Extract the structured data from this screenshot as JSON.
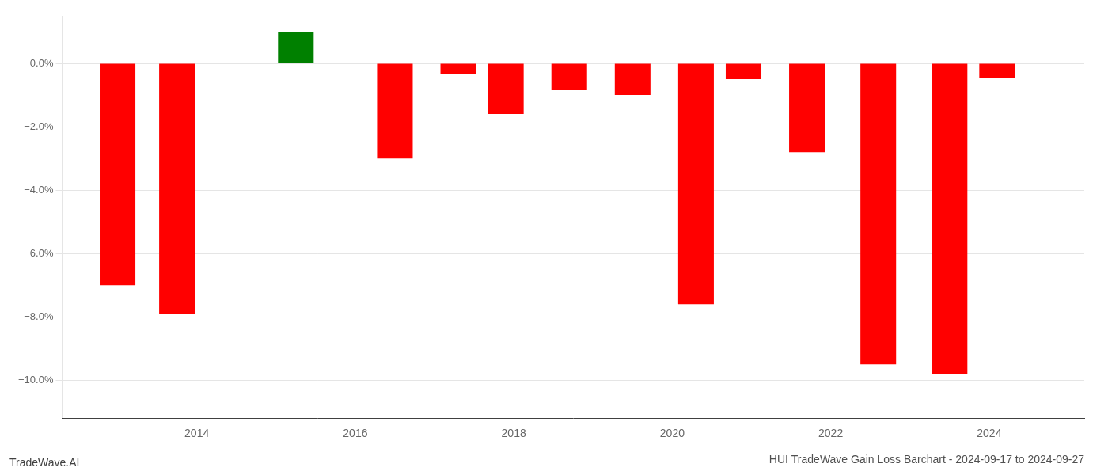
{
  "chart_data": {
    "type": "bar",
    "title": "HUI TradeWave Gain Loss Barchart - 2024-09-17 to 2024-09-27",
    "annotations": [
      "TradeWave.AI"
    ],
    "x": [
      2013,
      2013.75,
      2015.25,
      2016.5,
      2017.3,
      2017.9,
      2018.7,
      2019.5,
      2020.3,
      2020.9,
      2021.7,
      2022.6,
      2023.5,
      2024.1
    ],
    "values": [
      -7.0,
      -7.9,
      1.0,
      -3.0,
      -0.35,
      -1.6,
      -0.85,
      -1.0,
      -7.6,
      -0.5,
      -2.8,
      -9.5,
      -9.8,
      -0.45
    ],
    "colors": [
      "#ff0000",
      "#ff0000",
      "#008000",
      "#ff0000",
      "#ff0000",
      "#ff0000",
      "#ff0000",
      "#ff0000",
      "#ff0000",
      "#ff0000",
      "#ff0000",
      "#ff0000",
      "#ff0000",
      "#ff0000"
    ],
    "xlim": [
      2012.3,
      2025.2
    ],
    "xticks": [
      2014,
      2016,
      2018,
      2020,
      2022,
      2024
    ],
    "ylim": [
      -11.2,
      1.5
    ],
    "yticks": [
      {
        "value": 0.0,
        "label": "0.0%"
      },
      {
        "value": -2.0,
        "label": "−2.0%"
      },
      {
        "value": -4.0,
        "label": "−4.0%"
      },
      {
        "value": -6.0,
        "label": "−6.0%"
      },
      {
        "value": -8.0,
        "label": "−8.0%"
      },
      {
        "value": -10.0,
        "label": "−10.0%"
      }
    ],
    "grid": true
  }
}
